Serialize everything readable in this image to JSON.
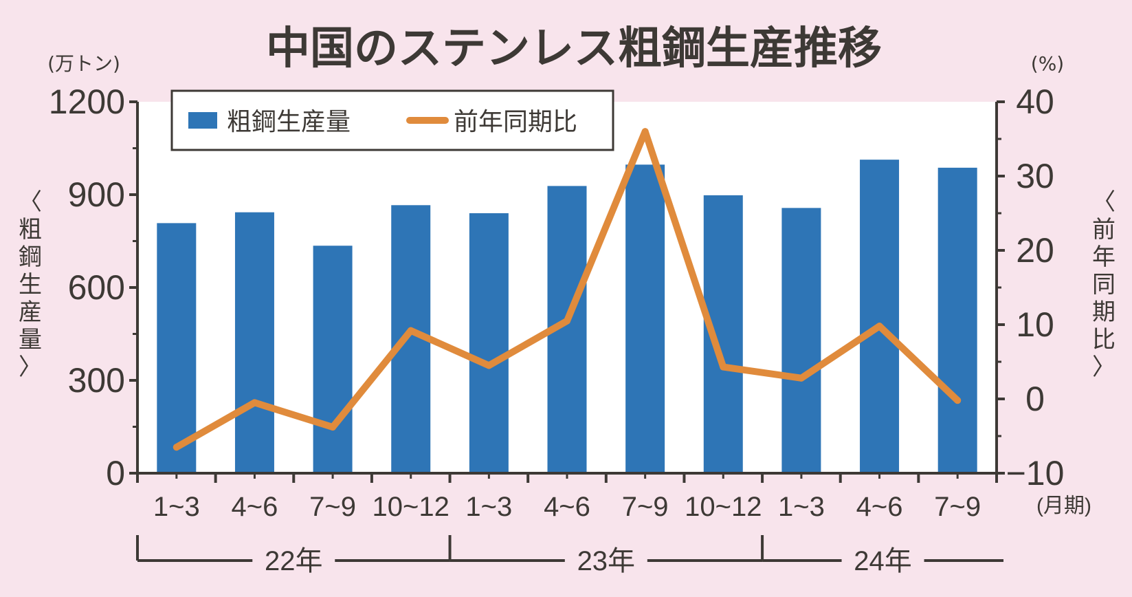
{
  "chart_data": {
    "type": "bar",
    "title": "中国のステンレス粗鋼生産推移",
    "categories": [
      "1~3",
      "4~6",
      "7~9",
      "10~12",
      "1~3",
      "4~6",
      "7~9",
      "10~12",
      "1~3",
      "4~6",
      "7~9"
    ],
    "category_unit": "(月期)",
    "year_groups": [
      {
        "label": "22年",
        "start": 0,
        "end": 3
      },
      {
        "label": "23年",
        "start": 4,
        "end": 7
      },
      {
        "label": "24年",
        "start": 8,
        "end": 10
      }
    ],
    "series": [
      {
        "name": "粗鋼生産量",
        "type": "bar",
        "axis": "left",
        "color": "#2e75b6",
        "values": [
          808,
          843,
          735,
          866,
          840,
          928,
          997,
          898,
          857,
          1013,
          987
        ]
      },
      {
        "name": "前年同期比",
        "type": "line",
        "axis": "right",
        "color": "#e08b3c",
        "values": [
          -6.5,
          -0.5,
          -3.8,
          9.2,
          4.5,
          10.5,
          36.0,
          4.3,
          2.8,
          9.8,
          -0.2
        ]
      }
    ],
    "y_left": {
      "label": "〈粗鋼生産量〉",
      "unit": "(万トン)",
      "range": [
        0,
        1200
      ],
      "ticks": [
        0,
        300,
        600,
        900,
        1200
      ],
      "tick_labels": [
        "0",
        "300",
        "600",
        "900",
        "1200"
      ]
    },
    "y_right": {
      "label": "〈前年同期比〉",
      "unit": "(%)",
      "range": [
        -10,
        40
      ],
      "ticks": [
        -10,
        0,
        10,
        20,
        30,
        40
      ],
      "tick_labels": [
        "−10",
        "0",
        "10",
        "20",
        "30",
        "40"
      ]
    },
    "legend": "top-left",
    "grid": false,
    "colors": {
      "background": "#f8e4ec",
      "plot": "#ffffff",
      "axis": "#3d3935",
      "bar": "#2e75b6",
      "line": "#e08b3c"
    }
  }
}
